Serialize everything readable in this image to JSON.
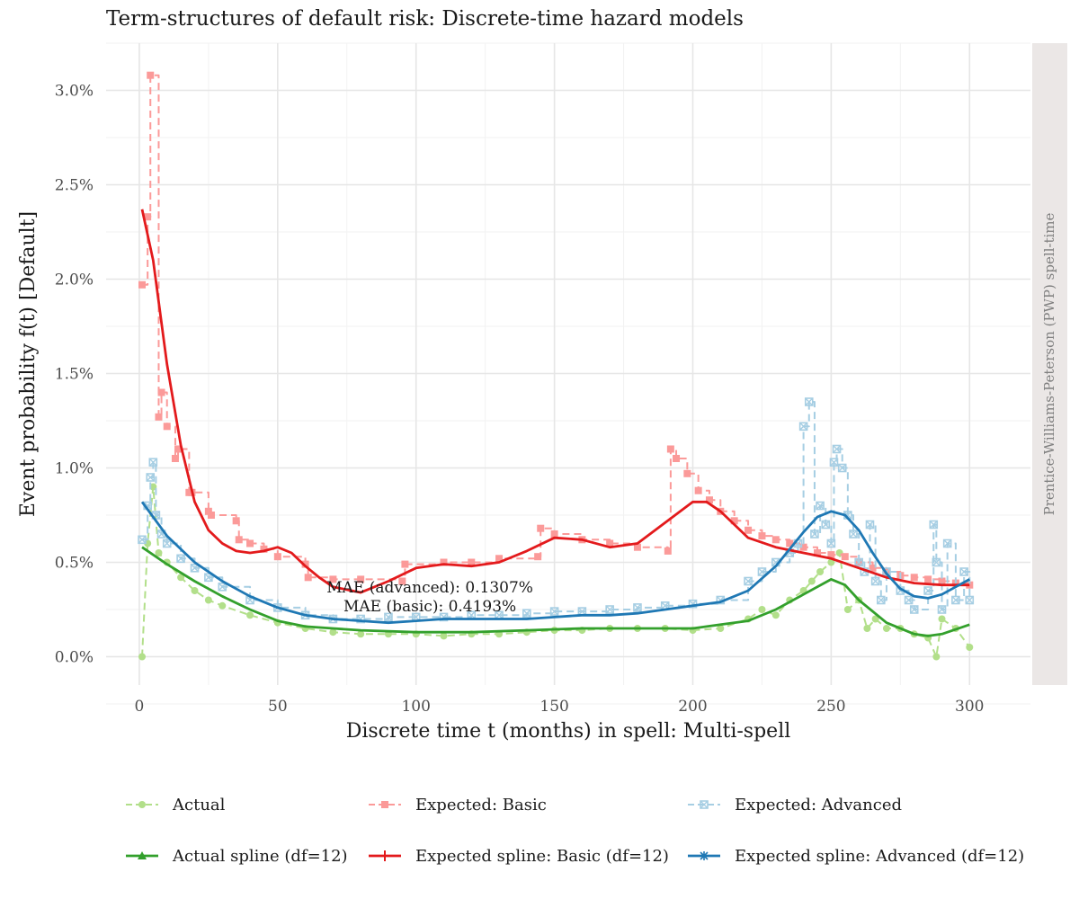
{
  "chart_data": {
    "type": "line",
    "title": "Term-structures of default risk: Discrete-time hazard models",
    "xlabel": "Discrete time t (months) in spell: Multi-spell",
    "ylabel": "Event probability f(t) [Default]",
    "facet_label": "Prentice-Williams-Peterson (PWP) spell-time",
    "xlim": [
      -12,
      322
    ],
    "ylim": [
      -0.15,
      3.25
    ],
    "x_ticks": [
      0,
      50,
      100,
      150,
      200,
      250,
      300
    ],
    "y_ticks": [
      0.0,
      0.5,
      1.0,
      1.5,
      2.0,
      2.5,
      3.0
    ],
    "y_tick_labels": [
      "0.0%",
      "0.5%",
      "1.0%",
      "1.5%",
      "2.0%",
      "2.5%",
      "3.0%"
    ],
    "grid": true,
    "legend_position": "bottom",
    "annotations": [
      {
        "text": "MAE (advanced): 0.1307%",
        "x": 105,
        "y": 0.34
      },
      {
        "text": "MAE (basic): 0.4193%",
        "x": 105,
        "y": 0.24
      }
    ],
    "series": [
      {
        "name": "Actual",
        "style": "points-dashed",
        "color": "#b2df8a",
        "marker": "circle",
        "x": [
          1,
          3,
          5,
          7,
          10,
          15,
          20,
          25,
          30,
          40,
          50,
          60,
          70,
          80,
          90,
          100,
          110,
          120,
          130,
          140,
          150,
          160,
          170,
          180,
          190,
          200,
          210,
          220,
          225,
          230,
          235,
          240,
          243,
          246,
          250,
          253,
          256,
          260,
          263,
          266,
          270,
          275,
          280,
          285,
          288,
          290,
          295,
          300
        ],
        "y": [
          0.0,
          0.6,
          0.9,
          0.55,
          0.5,
          0.42,
          0.35,
          0.3,
          0.27,
          0.22,
          0.18,
          0.15,
          0.13,
          0.12,
          0.12,
          0.12,
          0.11,
          0.12,
          0.12,
          0.13,
          0.14,
          0.14,
          0.15,
          0.15,
          0.15,
          0.14,
          0.15,
          0.2,
          0.25,
          0.22,
          0.3,
          0.35,
          0.4,
          0.45,
          0.5,
          0.55,
          0.25,
          0.3,
          0.15,
          0.2,
          0.15,
          0.15,
          0.12,
          0.1,
          0.0,
          0.2,
          0.15,
          0.05
        ]
      },
      {
        "name": "Expected: Basic",
        "style": "step-dashed",
        "color": "#fb9a99",
        "marker": "square",
        "x": [
          1,
          3,
          4,
          7,
          8,
          10,
          13,
          14,
          18,
          19,
          25,
          26,
          35,
          36,
          40,
          45,
          50,
          60,
          61,
          70,
          80,
          95,
          96,
          110,
          120,
          130,
          144,
          145,
          150,
          160,
          170,
          180,
          191,
          192,
          194,
          198,
          202,
          206,
          210,
          215,
          220,
          225,
          230,
          235,
          240,
          245,
          250,
          255,
          260,
          265,
          270,
          275,
          280,
          285,
          290,
          295,
          300
        ],
        "y": [
          1.97,
          2.33,
          3.08,
          1.27,
          1.4,
          1.22,
          1.05,
          1.1,
          0.87,
          0.87,
          0.77,
          0.75,
          0.72,
          0.62,
          0.6,
          0.57,
          0.53,
          0.49,
          0.42,
          0.41,
          0.41,
          0.4,
          0.49,
          0.5,
          0.5,
          0.52,
          0.53,
          0.68,
          0.65,
          0.62,
          0.6,
          0.58,
          0.56,
          1.1,
          1.05,
          0.97,
          0.88,
          0.83,
          0.77,
          0.72,
          0.67,
          0.64,
          0.62,
          0.6,
          0.58,
          0.55,
          0.54,
          0.53,
          0.5,
          0.47,
          0.45,
          0.43,
          0.42,
          0.41,
          0.4,
          0.39,
          0.38
        ]
      },
      {
        "name": "Expected: Advanced",
        "style": "step-dashed",
        "color": "#a6cee3",
        "marker": "crossed-square",
        "x": [
          1,
          3,
          4,
          5,
          6,
          8,
          10,
          15,
          20,
          25,
          30,
          40,
          50,
          60,
          70,
          80,
          90,
          100,
          110,
          120,
          130,
          140,
          150,
          160,
          170,
          180,
          190,
          200,
          210,
          220,
          225,
          230,
          235,
          238,
          240,
          242,
          244,
          246,
          248,
          250,
          251,
          252,
          254,
          256,
          258,
          260,
          262,
          264,
          266,
          268,
          270,
          275,
          278,
          280,
          285,
          287,
          288,
          290,
          292,
          295,
          298,
          300
        ],
        "y": [
          0.62,
          0.8,
          0.95,
          1.03,
          0.75,
          0.65,
          0.6,
          0.52,
          0.47,
          0.42,
          0.37,
          0.3,
          0.26,
          0.22,
          0.2,
          0.2,
          0.21,
          0.21,
          0.21,
          0.22,
          0.22,
          0.23,
          0.24,
          0.24,
          0.25,
          0.26,
          0.27,
          0.28,
          0.3,
          0.4,
          0.45,
          0.5,
          0.55,
          0.6,
          1.22,
          1.35,
          0.65,
          0.8,
          0.7,
          0.6,
          1.03,
          1.1,
          1.0,
          0.75,
          0.65,
          0.5,
          0.45,
          0.7,
          0.4,
          0.3,
          0.45,
          0.35,
          0.3,
          0.25,
          0.35,
          0.7,
          0.5,
          0.25,
          0.6,
          0.3,
          0.45,
          0.3
        ]
      },
      {
        "name": "Actual spline (df=12)",
        "style": "line",
        "color": "#33a02c",
        "marker": "triangle",
        "x": [
          1,
          10,
          20,
          30,
          40,
          50,
          60,
          70,
          80,
          100,
          120,
          140,
          160,
          180,
          200,
          210,
          220,
          230,
          240,
          250,
          255,
          260,
          270,
          280,
          285,
          290,
          300
        ],
        "y": [
          0.58,
          0.49,
          0.4,
          0.32,
          0.25,
          0.19,
          0.16,
          0.15,
          0.14,
          0.13,
          0.13,
          0.14,
          0.15,
          0.15,
          0.15,
          0.17,
          0.19,
          0.25,
          0.33,
          0.41,
          0.38,
          0.3,
          0.18,
          0.12,
          0.11,
          0.12,
          0.17
        ]
      },
      {
        "name": "Expected spline: Basic (df=12)",
        "style": "line",
        "color": "#e31a1c",
        "marker": "plus",
        "x": [
          1,
          5,
          10,
          15,
          20,
          25,
          30,
          35,
          40,
          45,
          50,
          55,
          60,
          65,
          70,
          80,
          90,
          100,
          110,
          120,
          130,
          140,
          150,
          160,
          170,
          180,
          190,
          200,
          205,
          210,
          220,
          230,
          240,
          250,
          260,
          270,
          280,
          290,
          300
        ],
        "y": [
          2.37,
          2.1,
          1.55,
          1.12,
          0.82,
          0.67,
          0.6,
          0.56,
          0.55,
          0.56,
          0.58,
          0.55,
          0.48,
          0.42,
          0.37,
          0.34,
          0.4,
          0.47,
          0.49,
          0.48,
          0.5,
          0.56,
          0.63,
          0.62,
          0.58,
          0.6,
          0.71,
          0.82,
          0.82,
          0.77,
          0.63,
          0.58,
          0.55,
          0.52,
          0.47,
          0.42,
          0.39,
          0.38,
          0.38
        ]
      },
      {
        "name": "Expected spline: Advanced (df=12)",
        "style": "line",
        "color": "#1f78b4",
        "marker": "asterisk",
        "x": [
          1,
          10,
          20,
          30,
          40,
          50,
          60,
          70,
          80,
          90,
          100,
          110,
          120,
          130,
          140,
          150,
          160,
          170,
          180,
          190,
          200,
          210,
          220,
          230,
          240,
          245,
          250,
          255,
          260,
          265,
          270,
          275,
          280,
          285,
          290,
          295,
          300
        ],
        "y": [
          0.82,
          0.64,
          0.5,
          0.4,
          0.32,
          0.26,
          0.22,
          0.2,
          0.19,
          0.18,
          0.19,
          0.2,
          0.2,
          0.2,
          0.2,
          0.21,
          0.22,
          0.22,
          0.23,
          0.25,
          0.27,
          0.29,
          0.35,
          0.48,
          0.66,
          0.74,
          0.77,
          0.75,
          0.67,
          0.55,
          0.44,
          0.36,
          0.32,
          0.31,
          0.33,
          0.37,
          0.41
        ]
      }
    ]
  }
}
